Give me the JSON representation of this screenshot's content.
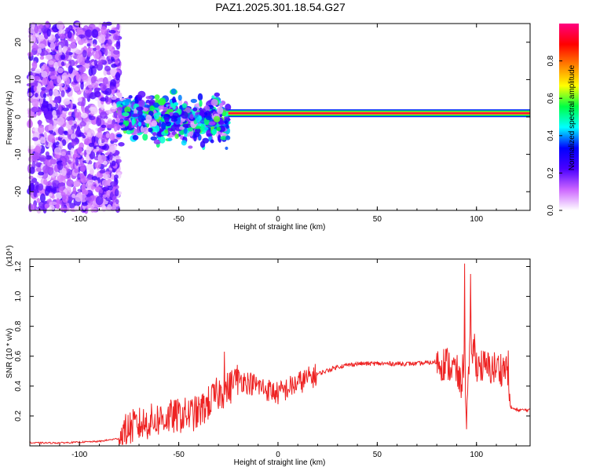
{
  "title": "PAZ1.2025.301.18.54.G27",
  "chart_data": [
    {
      "type": "heatmap",
      "xlabel": "Height of straight line (km)",
      "ylabel": "Frequency (Hz)",
      "xlim": [
        -125,
        127
      ],
      "ylim": [
        -25,
        25
      ],
      "x_ticks": [
        -100,
        -50,
        0,
        50,
        100
      ],
      "y_ticks": [
        -20,
        -10,
        0,
        10,
        20
      ],
      "colorbar": {
        "label": "Normalized spectral amplitude",
        "range": [
          0,
          1
        ],
        "ticks": [
          "0.0",
          "0.2",
          "0.4",
          "0.6",
          "0.8"
        ],
        "colors": [
          "#ffffff",
          "#cc66ff",
          "#4a00ff",
          "#0000ff",
          "#00ffff",
          "#00ff44",
          "#ffff00",
          "#ff8000",
          "#ff0000",
          "#ff0080"
        ]
      },
      "regions": [
        {
          "name": "noise",
          "x_range": [
            -125,
            -80
          ],
          "freq_range": [
            -25,
            25
          ],
          "amplitude": 0.1
        },
        {
          "name": "scattered",
          "x_range": [
            -80,
            -25
          ],
          "freq_center": 0,
          "freq_spread": 6,
          "amplitude": 0.3
        },
        {
          "name": "tone",
          "x_range": [
            -25,
            127
          ],
          "freq": 1,
          "amplitude": 0.95
        }
      ]
    },
    {
      "type": "line",
      "xlabel": "Height of straight line (km)",
      "ylabel": "SNR (10 * v/v)",
      "scale_label": "(x10⁴)",
      "xlim": [
        -125,
        127
      ],
      "ylim": [
        0,
        1.25
      ],
      "x_ticks": [
        -100,
        -50,
        0,
        50,
        100
      ],
      "y_ticks": [
        0.2,
        0.4,
        0.6,
        0.8,
        1.0,
        1.2
      ],
      "color": "#ee2222",
      "series": [
        {
          "name": "SNR",
          "x": [
            -125,
            -110,
            -90,
            -80,
            -75,
            -70,
            -60,
            -50,
            -40,
            -30,
            -25,
            -20,
            -10,
            0,
            10,
            20,
            30,
            40,
            50,
            60,
            70,
            80,
            85,
            90,
            92,
            94,
            95,
            97,
            100,
            105,
            110,
            116,
            117,
            120,
            127
          ],
          "y": [
            0.02,
            0.02,
            0.03,
            0.05,
            0.12,
            0.14,
            0.18,
            0.2,
            0.22,
            0.35,
            0.38,
            0.45,
            0.4,
            0.35,
            0.42,
            0.48,
            0.53,
            0.55,
            0.55,
            0.55,
            0.55,
            0.56,
            0.55,
            0.5,
            0.4,
            0.6,
            0.2,
            0.7,
            0.55,
            0.52,
            0.52,
            0.52,
            0.26,
            0.24,
            0.24
          ]
        }
      ],
      "spikes": [
        {
          "x": -27,
          "y": 0.63
        },
        {
          "x": -22,
          "y": 0.48
        },
        {
          "x": 94,
          "y": 1.22
        },
        {
          "x": 97,
          "y": 1.15
        },
        {
          "x": 99,
          "y": 0.75
        }
      ]
    }
  ]
}
